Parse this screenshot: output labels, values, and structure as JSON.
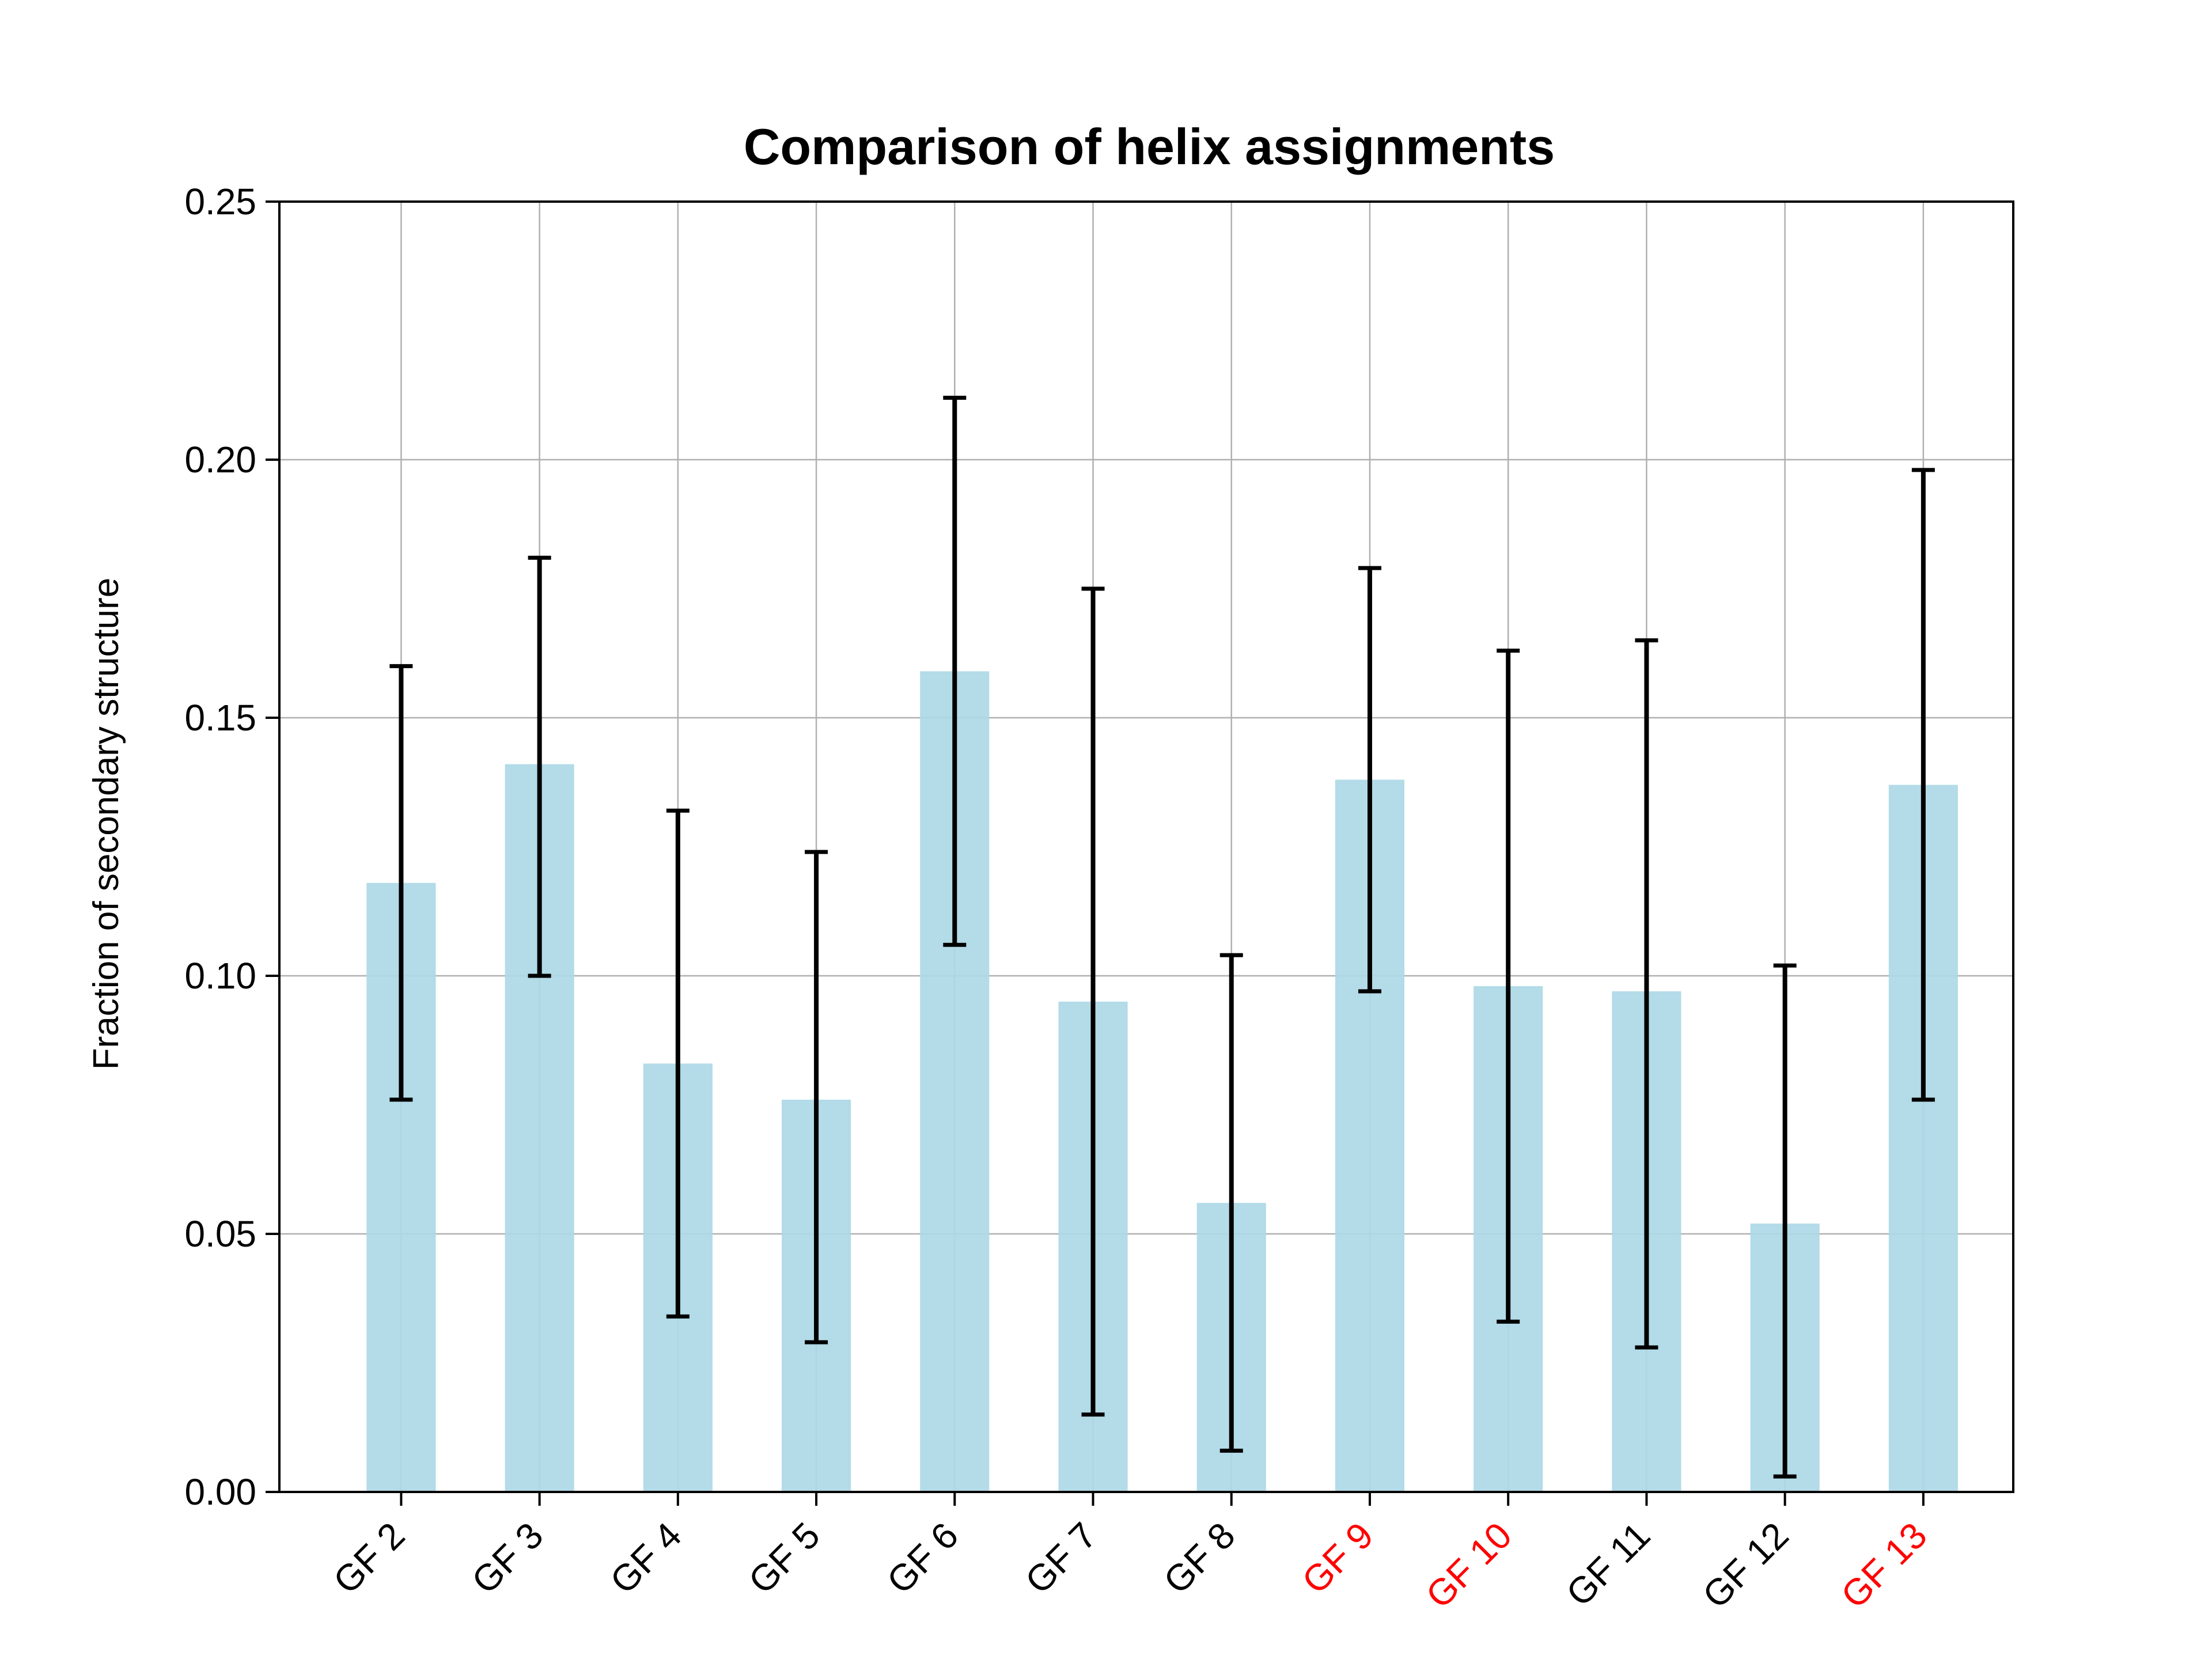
{
  "chart_data": {
    "type": "bar",
    "title": "Comparison of helix assignments",
    "xlabel": "",
    "ylabel": "Fraction of secondary structure",
    "categories": [
      "GF 2",
      "GF 3",
      "GF 4",
      "GF 5",
      "GF 6",
      "GF 7",
      "GF 8",
      "GF 9",
      "GF 10",
      "GF 11",
      "GF 12",
      "GF 13"
    ],
    "values": [
      0.118,
      0.141,
      0.083,
      0.076,
      0.159,
      0.095,
      0.056,
      0.138,
      0.098,
      0.097,
      0.052,
      0.137
    ],
    "error_low": [
      0.076,
      0.1,
      0.034,
      0.029,
      0.106,
      0.015,
      0.008,
      0.097,
      0.033,
      0.028,
      0.003,
      0.076
    ],
    "error_high": [
      0.16,
      0.181,
      0.132,
      0.124,
      0.212,
      0.175,
      0.104,
      0.179,
      0.163,
      0.165,
      0.102,
      0.198
    ],
    "highlighted_categories": [
      "GF 9",
      "GF 10",
      "GF 13"
    ],
    "yticks": [
      "0.00",
      "0.05",
      "0.10",
      "0.15",
      "0.20",
      "0.25"
    ],
    "ylim": [
      0,
      0.25
    ],
    "grid": true,
    "colors": {
      "bar": "#add8e6",
      "error_bar": "#000000",
      "grid": "#b0b0b0",
      "highlight_label": "#ff0000",
      "label": "#000000"
    }
  }
}
